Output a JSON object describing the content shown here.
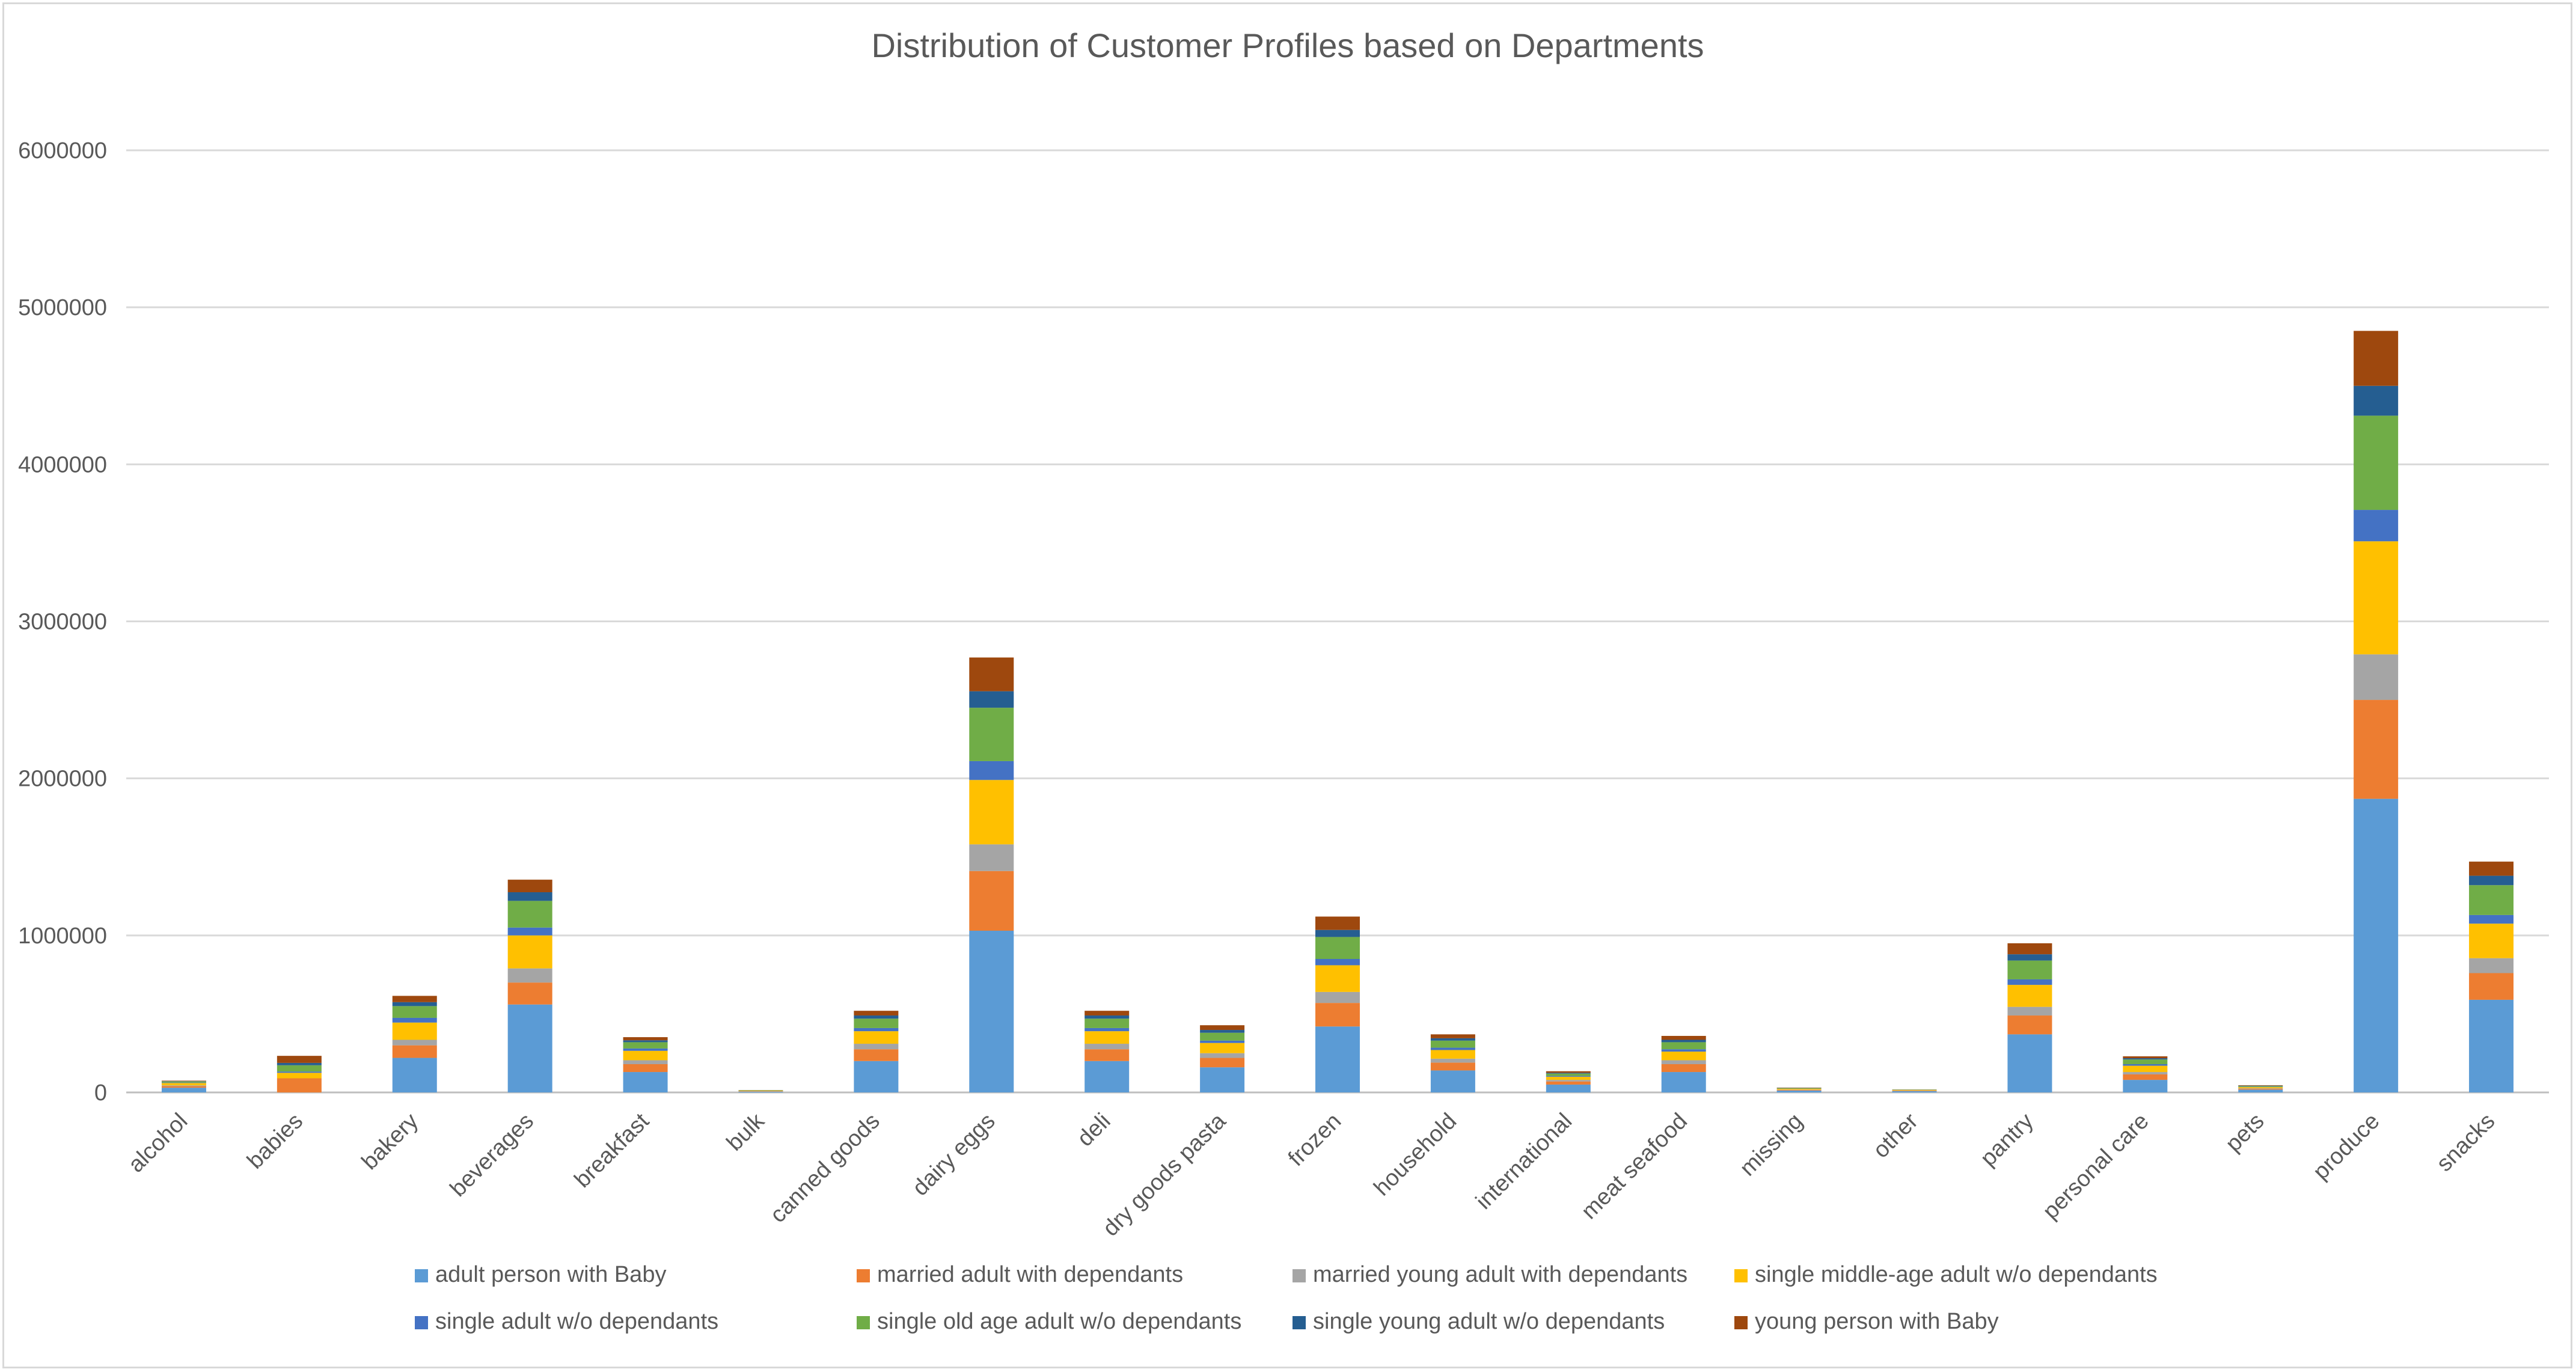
{
  "chart_data": {
    "type": "bar",
    "stacked": true,
    "title": "Distribution of Customer Profiles based on Departments",
    "xlabel": "",
    "ylabel": "",
    "ylim": [
      0,
      6000000
    ],
    "yticks": [
      "0",
      "1000000",
      "2000000",
      "3000000",
      "4000000",
      "5000000",
      "6000000"
    ],
    "grid": true,
    "legend_position": "bottom",
    "categories": [
      "alcohol",
      "babies",
      "bakery",
      "beverages",
      "breakfast",
      "bulk",
      "canned goods",
      "dairy eggs",
      "deli",
      "dry goods pasta",
      "frozen",
      "household",
      "international",
      "meat seafood",
      "missing",
      "other",
      "pantry",
      "personal care",
      "pets",
      "produce",
      "snacks"
    ],
    "series": [
      {
        "name": "adult person with Baby",
        "color": "#5b9bd5",
        "values": [
          30000,
          0,
          220000,
          560000,
          130000,
          5000,
          200000,
          1030000,
          200000,
          160000,
          420000,
          140000,
          50000,
          130000,
          12000,
          8000,
          370000,
          80000,
          18000,
          1870000,
          590000
        ]
      },
      {
        "name": "married  adult with dependants",
        "color": "#ed7d31",
        "values": [
          10000,
          90000,
          80000,
          140000,
          50000,
          2000,
          75000,
          380000,
          75000,
          60000,
          150000,
          50000,
          20000,
          50000,
          4000,
          3000,
          120000,
          35000,
          6000,
          630000,
          170000
        ]
      },
      {
        "name": "married young adult with dependants",
        "color": "#a5a5a5",
        "values": [
          5000,
          0,
          35000,
          90000,
          25000,
          1000,
          35000,
          170000,
          35000,
          30000,
          70000,
          25000,
          10000,
          25000,
          2000,
          1000,
          55000,
          15000,
          3000,
          290000,
          95000
        ]
      },
      {
        "name": "single  middle-age adult w/o dependants",
        "color": "#ffc000",
        "values": [
          15000,
          35000,
          110000,
          210000,
          60000,
          3000,
          80000,
          410000,
          80000,
          65000,
          170000,
          55000,
          20000,
          55000,
          5000,
          3000,
          140000,
          40000,
          7000,
          720000,
          220000
        ]
      },
      {
        "name": "single adult w/o dependants",
        "color": "#4472c4",
        "values": [
          3000,
          8000,
          30000,
          50000,
          15000,
          500,
          20000,
          120000,
          20000,
          15000,
          40000,
          15000,
          5000,
          15000,
          1000,
          500,
          35000,
          10000,
          2000,
          200000,
          55000
        ]
      },
      {
        "name": "single old age adult w/o dependants",
        "color": "#70ad47",
        "values": [
          7000,
          40000,
          75000,
          170000,
          40000,
          2000,
          60000,
          340000,
          60000,
          50000,
          140000,
          45000,
          15000,
          45000,
          4000,
          2000,
          120000,
          30000,
          5000,
          600000,
          190000
        ]
      },
      {
        "name": "single young adult w/o dependants",
        "color": "#255e91",
        "values": [
          2000,
          15000,
          25000,
          55000,
          12000,
          500,
          20000,
          105000,
          20000,
          18000,
          45000,
          15000,
          5000,
          15000,
          1000,
          500,
          40000,
          8000,
          2000,
          190000,
          60000
        ]
      },
      {
        "name": "young person with Baby",
        "color": "#9e480e",
        "values": [
          3000,
          45000,
          40000,
          80000,
          20000,
          1000,
          30000,
          215000,
          30000,
          30000,
          85000,
          25000,
          10000,
          25000,
          2000,
          1000,
          70000,
          12000,
          3000,
          350000,
          90000
        ]
      }
    ]
  }
}
